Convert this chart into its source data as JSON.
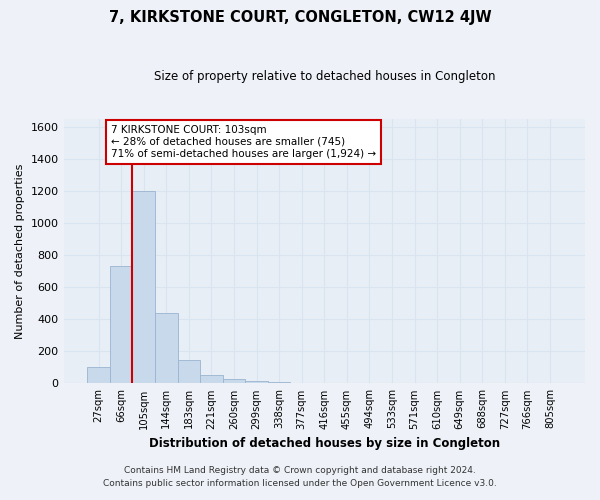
{
  "title": "7, KIRKSTONE COURT, CONGLETON, CW12 4JW",
  "subtitle": "Size of property relative to detached houses in Congleton",
  "xlabel": "Distribution of detached houses by size in Congleton",
  "ylabel": "Number of detached properties",
  "footer1": "Contains HM Land Registry data © Crown copyright and database right 2024.",
  "footer2": "Contains public sector information licensed under the Open Government Licence v3.0.",
  "bar_labels": [
    "27sqm",
    "66sqm",
    "105sqm",
    "144sqm",
    "183sqm",
    "221sqm",
    "260sqm",
    "299sqm",
    "338sqm",
    "377sqm",
    "416sqm",
    "455sqm",
    "494sqm",
    "533sqm",
    "571sqm",
    "610sqm",
    "649sqm",
    "688sqm",
    "727sqm",
    "766sqm",
    "805sqm"
  ],
  "bar_values": [
    100,
    730,
    1200,
    440,
    145,
    55,
    28,
    15,
    8,
    0,
    0,
    0,
    0,
    0,
    0,
    0,
    0,
    0,
    0,
    0,
    0
  ],
  "bar_color": "#c8d9ec",
  "bar_edge_color": "#9ab4d0",
  "vline_x": 1.5,
  "vline_color": "#cc0000",
  "ylim": [
    0,
    1650
  ],
  "yticks": [
    0,
    200,
    400,
    600,
    800,
    1000,
    1200,
    1400,
    1600
  ],
  "annotation_text": "7 KIRKSTONE COURT: 103sqm\n← 28% of detached houses are smaller (745)\n71% of semi-detached houses are larger (1,924) →",
  "annotation_box_color": "#ffffff",
  "annotation_box_edge": "#cc0000",
  "bg_color": "#eef2f8",
  "grid_color": "#d8e4f0",
  "plot_bg": "#e8eef6"
}
